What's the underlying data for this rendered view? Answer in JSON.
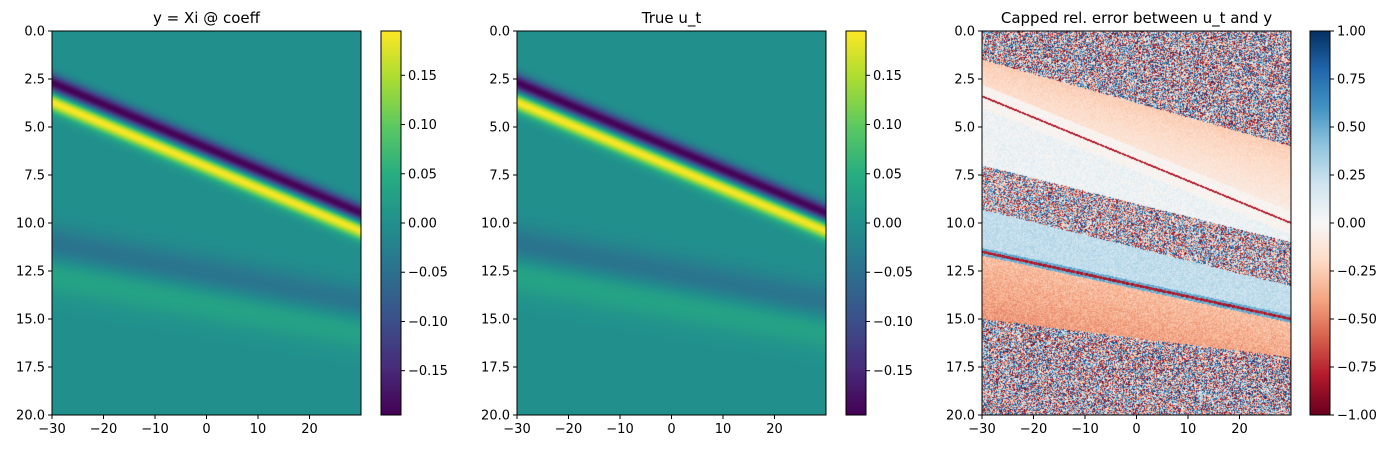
{
  "chart_data": [
    {
      "type": "heatmap",
      "title": "y = Xi @ coeff",
      "xlabel": "",
      "ylabel": "",
      "xlim": [
        -30,
        30
      ],
      "ylim": [
        20,
        0
      ],
      "x_ticks": [
        -30,
        -20,
        -10,
        0,
        10,
        20
      ],
      "x_tick_labels": [
        "−30",
        "−20",
        "−10",
        "0",
        "10",
        "20"
      ],
      "y_ticks": [
        0.0,
        2.5,
        5.0,
        7.5,
        10.0,
        12.5,
        15.0,
        17.5,
        20.0
      ],
      "y_tick_labels": [
        "0.0",
        "2.5",
        "5.0",
        "7.5",
        "10.0",
        "12.5",
        "15.0",
        "17.5",
        "20.0"
      ],
      "colormap": "viridis",
      "color_range": [
        -0.195,
        0.195
      ],
      "colorbar_ticks": [
        0.15,
        0.1,
        0.05,
        0.0,
        -0.05,
        -0.1,
        -0.15
      ],
      "colorbar_tick_labels": [
        "0.15",
        "0.10",
        "0.05",
        "0.00",
        "−0.05",
        "−0.10",
        "−0.15"
      ],
      "features": [
        {
          "name": "negative band",
          "t_at_x_minus30": 2.7,
          "t_at_x_30": 9.5,
          "value": -0.195
        },
        {
          "name": "positive band",
          "t_at_x_minus30": 3.7,
          "t_at_x_30": 10.4,
          "value": 0.195
        },
        {
          "name": "weak negative band",
          "t_at_x_minus30": 11.2,
          "t_at_x_30": 14.3,
          "value": -0.05
        },
        {
          "name": "weak positive band",
          "t_at_x_minus30": 12.6,
          "t_at_x_30": 15.5,
          "value": 0.04
        }
      ]
    },
    {
      "type": "heatmap",
      "title": "True u_t",
      "xlabel": "",
      "ylabel": "",
      "xlim": [
        -30,
        30
      ],
      "ylim": [
        20,
        0
      ],
      "x_ticks": [
        -30,
        -20,
        -10,
        0,
        10,
        20
      ],
      "x_tick_labels": [
        "−30",
        "−20",
        "−10",
        "0",
        "10",
        "20"
      ],
      "y_ticks": [
        0.0,
        2.5,
        5.0,
        7.5,
        10.0,
        12.5,
        15.0,
        17.5,
        20.0
      ],
      "y_tick_labels": [
        "0.0",
        "2.5",
        "5.0",
        "7.5",
        "10.0",
        "12.5",
        "15.0",
        "17.5",
        "20.0"
      ],
      "colormap": "viridis",
      "color_range": [
        -0.195,
        0.195
      ],
      "colorbar_ticks": [
        0.15,
        0.1,
        0.05,
        0.0,
        -0.05,
        -0.1,
        -0.15
      ],
      "colorbar_tick_labels": [
        "0.15",
        "0.10",
        "0.05",
        "0.00",
        "−0.05",
        "−0.10",
        "−0.15"
      ],
      "features": [
        {
          "name": "negative band",
          "t_at_x_minus30": 2.7,
          "t_at_x_30": 9.5,
          "value": -0.195
        },
        {
          "name": "positive band",
          "t_at_x_minus30": 3.7,
          "t_at_x_30": 10.4,
          "value": 0.195
        },
        {
          "name": "weak negative band",
          "t_at_x_minus30": 11.2,
          "t_at_x_30": 14.3,
          "value": -0.05
        },
        {
          "name": "weak positive band",
          "t_at_x_minus30": 12.6,
          "t_at_x_30": 15.5,
          "value": 0.04
        }
      ]
    },
    {
      "type": "heatmap",
      "title": "Capped rel. error between u_t and y",
      "xlabel": "",
      "ylabel": "",
      "xlim": [
        -30,
        30
      ],
      "ylim": [
        20,
        0
      ],
      "x_ticks": [
        -30,
        -20,
        -10,
        0,
        10,
        20
      ],
      "x_tick_labels": [
        "−30",
        "−20",
        "−10",
        "0",
        "10",
        "20"
      ],
      "y_ticks": [
        0.0,
        2.5,
        5.0,
        7.5,
        10.0,
        12.5,
        15.0,
        17.5,
        20.0
      ],
      "y_tick_labels": [
        "0.0",
        "2.5",
        "5.0",
        "7.5",
        "10.0",
        "12.5",
        "15.0",
        "17.5",
        "20.0"
      ],
      "colormap": "RdBu",
      "color_range": [
        -1.0,
        1.0
      ],
      "colorbar_ticks": [
        1.0,
        0.75,
        0.5,
        0.25,
        0.0,
        -0.25,
        -0.5,
        -0.75,
        -1.0
      ],
      "colorbar_tick_labels": [
        "1.00",
        "0.75",
        "0.50",
        "0.25",
        "0.00",
        "−0.25",
        "−0.50",
        "−0.75",
        "−1.00"
      ],
      "features": [
        {
          "name": "noise region top",
          "t_from": 0.0,
          "t_to_at_x_minus30": 1.5,
          "t_to_at_x_30": 6.0
        },
        {
          "name": "smooth band upper",
          "t_at_x_minus30": 3.4,
          "t_at_x_30": 10.0,
          "value": -0.1
        },
        {
          "name": "noise region middle",
          "t_at_x_minus30": 8.0,
          "t_at_x_30": 12.0
        },
        {
          "name": "smooth band lower",
          "t_at_x_minus30": 11.5,
          "t_at_x_30": 15.0,
          "value": -0.2
        },
        {
          "name": "noise region bottom",
          "t_from_at_x_minus30": 15.0,
          "t_from_at_x_30": 17.0,
          "t_to": 20.0
        }
      ]
    }
  ]
}
